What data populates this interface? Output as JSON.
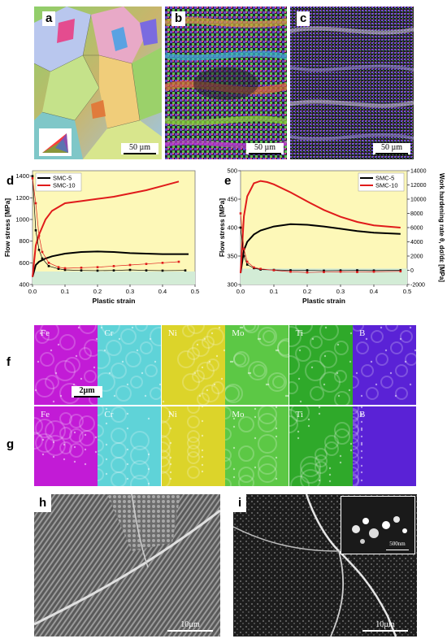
{
  "panels": {
    "a": {
      "label": "a",
      "scale": "50 µm"
    },
    "b": {
      "label": "b",
      "scale": "50 µm"
    },
    "c": {
      "label": "c",
      "scale": "50 µm"
    },
    "d": {
      "label": "d"
    },
    "e": {
      "label": "e"
    },
    "f": {
      "label": "f",
      "scale": "2µm"
    },
    "g": {
      "label": "g"
    },
    "h": {
      "label": "h",
      "scale": "10µm"
    },
    "i": {
      "label": "i",
      "scale": "10µm",
      "inset_scale": "500nm"
    }
  },
  "element_maps": {
    "elements": [
      "Fe",
      "Cr",
      "Ni",
      "Mo",
      "Ti",
      "B"
    ],
    "colors": [
      "#c21bd6",
      "#5fd3d8",
      "#dcd42a",
      "#5cc845",
      "#2fa92a",
      "#5a22d6"
    ]
  },
  "chart_data": [
    {
      "panel": "d",
      "type": "line",
      "xlabel": "Plastic strain",
      "ylabel": "Flow stress [MPa]",
      "xlim": [
        0,
        0.5
      ],
      "ylim": [
        400,
        1450
      ],
      "x_ticks": [
        "0.0",
        "0.1",
        "0.2",
        "0.3",
        "0.4",
        "0.5"
      ],
      "y_ticks": [
        "400",
        "600",
        "800",
        "1000",
        "1200",
        "1400"
      ],
      "legend": "top-left",
      "background": "#fdf8b8",
      "band_color": "#d3ecd6",
      "band_y": [
        400,
        520
      ],
      "series": [
        {
          "name": "SMC-5",
          "color": "#000000",
          "x": [
            0.0,
            0.01,
            0.02,
            0.04,
            0.06,
            0.1,
            0.15,
            0.2,
            0.25,
            0.3,
            0.35,
            0.4,
            0.48
          ],
          "y": [
            470,
            580,
            610,
            640,
            660,
            685,
            700,
            705,
            700,
            690,
            685,
            680,
            680
          ]
        },
        {
          "name": "SMC-10",
          "color": "#e01b1b",
          "x": [
            0.0,
            0.01,
            0.02,
            0.04,
            0.06,
            0.1,
            0.15,
            0.2,
            0.25,
            0.3,
            0.35,
            0.4,
            0.45
          ],
          "y": [
            470,
            760,
            860,
            1000,
            1080,
            1150,
            1170,
            1190,
            1210,
            1240,
            1270,
            1310,
            1350
          ]
        },
        {
          "name": "SMC-5 work hardening",
          "color": "#000000",
          "marker": true,
          "x": [
            0.0,
            0.01,
            0.02,
            0.03,
            0.05,
            0.08,
            0.1,
            0.15,
            0.2,
            0.25,
            0.3,
            0.35,
            0.4,
            0.47
          ],
          "y": [
            1400,
            900,
            720,
            640,
            570,
            545,
            535,
            530,
            528,
            530,
            535,
            530,
            528,
            530
          ]
        },
        {
          "name": "SMC-10 work hardening",
          "color": "#e01b1b",
          "marker": true,
          "x": [
            0.0,
            0.01,
            0.02,
            0.03,
            0.05,
            0.08,
            0.1,
            0.15,
            0.2,
            0.25,
            0.3,
            0.35,
            0.4,
            0.45
          ],
          "y": [
            1380,
            1150,
            850,
            700,
            600,
            560,
            550,
            555,
            560,
            570,
            580,
            590,
            600,
            610
          ]
        }
      ]
    },
    {
      "panel": "e",
      "type": "line",
      "xlabel": "Plastic strain",
      "ylabel": "Flow stress [MPa]",
      "y2label": "Work hardening rate θ, dσ/dε [MPa]",
      "xlim": [
        0,
        0.5
      ],
      "ylim": [
        300,
        500
      ],
      "y2lim": [
        -2000,
        14000
      ],
      "x_ticks": [
        "0.0",
        "0.1",
        "0.2",
        "0.3",
        "0.4",
        "0.5"
      ],
      "y_ticks": [
        "300",
        "350",
        "400",
        "450",
        "500"
      ],
      "y2_ticks": [
        "-2000",
        "0",
        "2000",
        "4000",
        "6000",
        "8000",
        "10000",
        "12000",
        "14000"
      ],
      "legend": "top-right",
      "background": "#fdf8b8",
      "band_color": "#d3ecd6",
      "band_y": [
        300,
        328
      ],
      "series": [
        {
          "name": "SMC-5",
          "color": "#000000",
          "x": [
            0.0,
            0.01,
            0.02,
            0.04,
            0.06,
            0.1,
            0.15,
            0.2,
            0.25,
            0.3,
            0.35,
            0.4,
            0.48
          ],
          "y": [
            320,
            360,
            375,
            388,
            395,
            402,
            406,
            405,
            402,
            398,
            394,
            391,
            389
          ]
        },
        {
          "name": "SMC-10",
          "color": "#e01b1b",
          "x": [
            0.0,
            0.01,
            0.02,
            0.04,
            0.06,
            0.08,
            0.1,
            0.15,
            0.2,
            0.25,
            0.3,
            0.35,
            0.4,
            0.48
          ],
          "y": [
            320,
            420,
            455,
            478,
            482,
            480,
            476,
            462,
            446,
            431,
            419,
            410,
            404,
            400
          ]
        },
        {
          "name": "SMC-5 work hardening",
          "color": "#000000",
          "marker": true,
          "axis": "y2",
          "x": [
            0.0,
            0.01,
            0.02,
            0.04,
            0.06,
            0.1,
            0.15,
            0.2,
            0.25,
            0.3,
            0.35,
            0.4,
            0.48
          ],
          "y": [
            6000,
            2000,
            800,
            300,
            100,
            50,
            0,
            0,
            -50,
            -20,
            0,
            -30,
            0
          ]
        },
        {
          "name": "SMC-10 work hardening",
          "color": "#e01b1b",
          "marker": true,
          "axis": "y2",
          "x": [
            0.0,
            0.01,
            0.02,
            0.04,
            0.06,
            0.1,
            0.15,
            0.2,
            0.25,
            0.3,
            0.35,
            0.4,
            0.48
          ],
          "y": [
            8000,
            3000,
            1200,
            400,
            200,
            0,
            -200,
            -300,
            -250,
            -200,
            -250,
            -200,
            -150
          ]
        }
      ]
    }
  ]
}
